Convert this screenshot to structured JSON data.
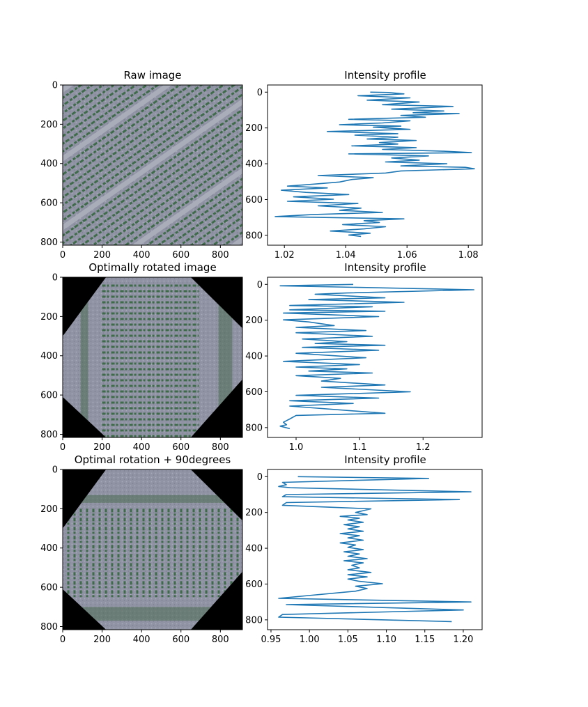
{
  "figure": {
    "rows": [
      {
        "image_panel": {
          "title": "Raw image",
          "rotation_deg": 35,
          "kind": "raw",
          "x_ticks": [
            0,
            200,
            400,
            600,
            800
          ],
          "y_ticks": [
            0,
            200,
            400,
            600,
            800
          ],
          "xlim": [
            0,
            912
          ],
          "ylim": [
            0,
            816
          ]
        },
        "profile_panel": {
          "title": "Intensity profile",
          "x_ticks": [
            1.02,
            1.04,
            1.06,
            1.08
          ],
          "y_ticks": [
            0,
            200,
            400,
            600,
            800
          ],
          "xlim": [
            1.0145,
            1.0845
          ],
          "ylim": [
            -40,
            855
          ],
          "line_color": "#1f77b4"
        }
      },
      {
        "image_panel": {
          "title": "Optimally rotated image",
          "kind": "rotated",
          "row_orientation": "horizontal",
          "x_ticks": [
            0,
            200,
            400,
            600,
            800
          ],
          "y_ticks": [
            0,
            200,
            400,
            600,
            800
          ],
          "xlim": [
            0,
            912
          ],
          "ylim": [
            0,
            816
          ]
        },
        "profile_panel": {
          "title": "Intensity profile",
          "x_ticks": [
            1.0,
            1.1,
            1.2
          ],
          "y_ticks": [
            0,
            200,
            400,
            600,
            800
          ],
          "xlim": [
            0.955,
            1.293
          ],
          "ylim": [
            -40,
            855
          ],
          "line_color": "#1f77b4"
        }
      },
      {
        "image_panel": {
          "title": "Optimal rotation + 90degrees",
          "kind": "rotated",
          "row_orientation": "vertical",
          "x_ticks": [
            0,
            200,
            400,
            600,
            800
          ],
          "y_ticks": [
            0,
            200,
            400,
            600,
            800
          ],
          "xlim": [
            0,
            912
          ],
          "ylim": [
            0,
            816
          ]
        },
        "profile_panel": {
          "title": "Intensity profile",
          "x_ticks": [
            0.95,
            1.0,
            1.05,
            1.1,
            1.15,
            1.2
          ],
          "y_ticks": [
            0,
            200,
            400,
            600,
            800
          ],
          "xlim": [
            0.9455,
            1.2245
          ],
          "ylim": [
            -40,
            855
          ],
          "line_color": "#1f77b4"
        }
      }
    ]
  },
  "chart_data": [
    {
      "type": "line",
      "title": "Intensity profile",
      "orientation": "horizontal-profile",
      "x_axis": "intensity",
      "y_axis": "row index (inverted)",
      "series": [
        {
          "points": [
            [
              1.048,
              0
            ],
            [
              1.054,
              2
            ],
            [
              1.059,
              10
            ],
            [
              1.044,
              20
            ],
            [
              1.061,
              32
            ],
            [
              1.047,
              45
            ],
            [
              1.064,
              55
            ],
            [
              1.052,
              70
            ],
            [
              1.075,
              80
            ],
            [
              1.055,
              95
            ],
            [
              1.072,
              105
            ],
            [
              1.062,
              115
            ],
            [
              1.077,
              120
            ],
            [
              1.058,
              130
            ],
            [
              1.066,
              140
            ],
            [
              1.041,
              152
            ],
            [
              1.061,
              160
            ],
            [
              1.052,
              172
            ],
            [
              1.038,
              182
            ],
            [
              1.058,
              190
            ],
            [
              1.049,
              196
            ],
            [
              1.061,
              208
            ],
            [
              1.034,
              220
            ],
            [
              1.057,
              232
            ],
            [
              1.043,
              240
            ],
            [
              1.057,
              252
            ],
            [
              1.047,
              262
            ],
            [
              1.063,
              270
            ],
            [
              1.051,
              282
            ],
            [
              1.057,
              290
            ],
            [
              1.042,
              300
            ],
            [
              1.063,
              310
            ],
            [
              1.052,
              320
            ],
            [
              1.072,
              330
            ],
            [
              1.081,
              338
            ],
            [
              1.041,
              345
            ],
            [
              1.067,
              356
            ],
            [
              1.055,
              368
            ],
            [
              1.064,
              380
            ],
            [
              1.053,
              390
            ],
            [
              1.073,
              400
            ],
            [
              1.058,
              412
            ],
            [
              1.079,
              420
            ],
            [
              1.082,
              428
            ],
            [
              1.058,
              440
            ],
            [
              1.053,
              452
            ],
            [
              1.031,
              466
            ],
            [
              1.049,
              478
            ],
            [
              1.042,
              488
            ],
            [
              1.038,
              502
            ],
            [
              1.029,
              515
            ],
            [
              1.021,
              525
            ],
            [
              1.034,
              535
            ],
            [
              1.019,
              548
            ],
            [
              1.027,
              560
            ],
            [
              1.041,
              572
            ],
            [
              1.023,
              585
            ],
            [
              1.036,
              598
            ],
            [
              1.021,
              610
            ],
            [
              1.044,
              622
            ],
            [
              1.031,
              635
            ],
            [
              1.045,
              648
            ],
            [
              1.038,
              660
            ],
            [
              1.052,
              672
            ],
            [
              1.029,
              684
            ],
            [
              1.017,
              695
            ],
            [
              1.059,
              708
            ],
            [
              1.046,
              718
            ],
            [
              1.051,
              728
            ],
            [
              1.039,
              740
            ],
            [
              1.053,
              752
            ],
            [
              1.046,
              764
            ],
            [
              1.035,
              776
            ],
            [
              1.048,
              788
            ],
            [
              1.041,
              798
            ],
            [
              1.045,
              806
            ]
          ]
        }
      ],
      "xlim": [
        1.0145,
        1.0845
      ],
      "ylim": [
        855,
        -40
      ]
    },
    {
      "type": "line",
      "title": "Intensity profile",
      "orientation": "horizontal-profile",
      "x_axis": "intensity",
      "y_axis": "row index (inverted)",
      "series": [
        {
          "points": [
            [
              1.09,
              0
            ],
            [
              0.975,
              8
            ],
            [
              1.28,
              30
            ],
            [
              1.08,
              48
            ],
            [
              1.03,
              55
            ],
            [
              1.14,
              75
            ],
            [
              1.02,
              85
            ],
            [
              1.17,
              100
            ],
            [
              0.99,
              118
            ],
            [
              1.12,
              125
            ],
            [
              0.99,
              142
            ],
            [
              1.14,
              150
            ],
            [
              0.98,
              160
            ],
            [
              1.13,
              180
            ],
            [
              0.98,
              198
            ],
            [
              1.02,
              210
            ],
            [
              1.06,
              230
            ],
            [
              1.0,
              240
            ],
            [
              1.11,
              258
            ],
            [
              1.0,
              270
            ],
            [
              1.12,
              290
            ],
            [
              1.01,
              305
            ],
            [
              1.08,
              320
            ],
            [
              1.03,
              330
            ],
            [
              1.14,
              340
            ],
            [
              1.01,
              352
            ],
            [
              1.13,
              368
            ],
            [
              1.0,
              385
            ],
            [
              1.11,
              410
            ],
            [
              0.98,
              430
            ],
            [
              1.1,
              448
            ],
            [
              1.0,
              462
            ],
            [
              1.08,
              472
            ],
            [
              1.02,
              484
            ],
            [
              1.12,
              495
            ],
            [
              1.0,
              510
            ],
            [
              1.07,
              525
            ],
            [
              1.04,
              540
            ],
            [
              1.14,
              562
            ],
            [
              1.04,
              575
            ],
            [
              1.18,
              600
            ],
            [
              1.0,
              620
            ],
            [
              1.13,
              635
            ],
            [
              0.99,
              650
            ],
            [
              1.09,
              665
            ],
            [
              0.99,
              680
            ],
            [
              1.14,
              720
            ],
            [
              1.0,
              732
            ],
            [
              0.99,
              752
            ],
            [
              0.98,
              770
            ],
            [
              0.985,
              784
            ],
            [
              0.975,
              792
            ],
            [
              0.99,
              806
            ]
          ]
        }
      ],
      "xlim": [
        0.955,
        1.293
      ],
      "ylim": [
        855,
        -40
      ]
    },
    {
      "type": "line",
      "title": "Intensity profile",
      "orientation": "horizontal-profile",
      "x_axis": "intensity",
      "y_axis": "row index (inverted)",
      "series": [
        {
          "points": [
            [
              0.985,
              0
            ],
            [
              1.155,
              10
            ],
            [
              0.965,
              32
            ],
            [
              0.97,
              45
            ],
            [
              0.96,
              55
            ],
            [
              0.975,
              62
            ],
            [
              1.21,
              85
            ],
            [
              0.97,
              100
            ],
            [
              0.965,
              112
            ],
            [
              1.195,
              128
            ],
            [
              0.97,
              145
            ],
            [
              0.965,
              160
            ],
            [
              1.08,
              180
            ],
            [
              1.07,
              190
            ],
            [
              1.06,
              200
            ],
            [
              1.075,
              212
            ],
            [
              1.04,
              222
            ],
            [
              1.065,
              232
            ],
            [
              1.05,
              242
            ],
            [
              1.07,
              255
            ],
            [
              1.045,
              268
            ],
            [
              1.065,
              280
            ],
            [
              1.05,
              292
            ],
            [
              1.07,
              305
            ],
            [
              1.04,
              318
            ],
            [
              1.065,
              330
            ],
            [
              1.05,
              342
            ],
            [
              1.07,
              355
            ],
            [
              1.04,
              370
            ],
            [
              1.06,
              382
            ],
            [
              1.05,
              395
            ],
            [
              1.07,
              408
            ],
            [
              1.045,
              420
            ],
            [
              1.065,
              432
            ],
            [
              1.05,
              445
            ],
            [
              1.075,
              458
            ],
            [
              1.045,
              470
            ],
            [
              1.07,
              482
            ],
            [
              1.055,
              495
            ],
            [
              1.065,
              510
            ],
            [
              1.05,
              520
            ],
            [
              1.08,
              535
            ],
            [
              1.05,
              548
            ],
            [
              1.075,
              560
            ],
            [
              1.05,
              572
            ],
            [
              1.065,
              585
            ],
            [
              1.095,
              598
            ],
            [
              1.06,
              612
            ],
            [
              1.075,
              625
            ],
            [
              1.06,
              640
            ],
            [
              0.96,
              680
            ],
            [
              1.21,
              700
            ],
            [
              0.97,
              715
            ],
            [
              1.2,
              745
            ],
            [
              0.965,
              770
            ],
            [
              0.96,
              785
            ],
            [
              1.185,
              810
            ]
          ]
        }
      ],
      "xlim": [
        0.9455,
        1.2245
      ],
      "ylim": [
        855,
        -40
      ]
    }
  ]
}
